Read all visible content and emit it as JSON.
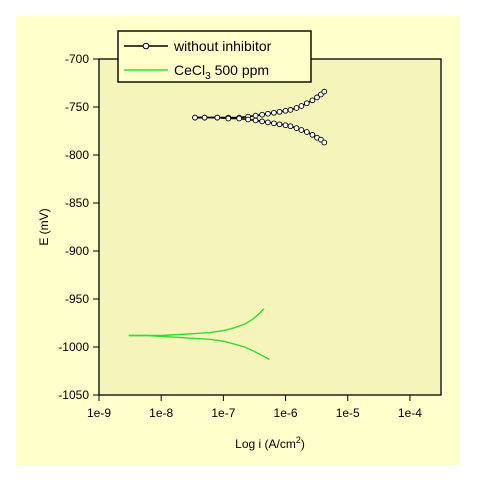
{
  "chart_data": {
    "type": "line",
    "title": "",
    "xlabel": "Log i (A/cm2)",
    "xlabel_parts": {
      "base": "Log i (A/cm",
      "sup": "2",
      "end": ")"
    },
    "ylabel": "E (mV)",
    "x_scale": "log",
    "xlim": [
      1e-09,
      0.0003162
    ],
    "ylim": [
      -1050,
      -700
    ],
    "x_ticks": [
      {
        "value": 1e-09,
        "label": "1e-9"
      },
      {
        "value": 1e-08,
        "label": "1e-8"
      },
      {
        "value": 1e-07,
        "label": "1e-7"
      },
      {
        "value": 1e-06,
        "label": "1e-6"
      },
      {
        "value": 1e-05,
        "label": "1e-5"
      },
      {
        "value": 0.0001,
        "label": "1e-4"
      }
    ],
    "y_ticks": [
      {
        "value": -700,
        "label": "-700"
      },
      {
        "value": -750,
        "label": "-750"
      },
      {
        "value": -800,
        "label": "-800"
      },
      {
        "value": -850,
        "label": "-850"
      },
      {
        "value": -900,
        "label": "-900"
      },
      {
        "value": -950,
        "label": "-950"
      },
      {
        "value": -1000,
        "label": "-1000"
      },
      {
        "value": -1050,
        "label": "-1050"
      }
    ],
    "grid": false,
    "legend_position": "top-left",
    "background_color": "#ffffcc",
    "plot_background_color": "#f5f5bb",
    "series": [
      {
        "name": "without  inhibitor",
        "color": "#000000",
        "marker": "circle-open",
        "branches": [
          {
            "x": [
              3.5e-08,
              5e-08,
              8e-08,
              1.2e-07,
              1.8e-07,
              2.5e-07,
              3.3e-07,
              4.2e-07,
              5.2e-07,
              6.5e-07,
              8e-07,
              1e-06,
              1.2e-06,
              1.5e-06,
              1.8e-06,
              2.2e-06,
              2.7e-06,
              3.2e-06,
              3.7e-06,
              4.2e-06
            ],
            "y": [
              -761,
              -761,
              -761,
              -761,
              -761,
              -760,
              -759,
              -758,
              -757,
              -756,
              -755,
              -754,
              -753,
              -751,
              -749,
              -746,
              -743,
              -740,
              -737,
              -734
            ]
          },
          {
            "x": [
              3.5e-08,
              5e-08,
              8e-08,
              1.2e-07,
              1.8e-07,
              2.5e-07,
              3.3e-07,
              4.2e-07,
              5.2e-07,
              6.5e-07,
              8e-07,
              1e-06,
              1.2e-06,
              1.5e-06,
              1.8e-06,
              2.2e-06,
              2.7e-06,
              3.2e-06,
              3.7e-06,
              4.2e-06
            ],
            "y": [
              -761,
              -761,
              -761,
              -762,
              -762,
              -763,
              -764,
              -765,
              -766,
              -767,
              -768,
              -769,
              -770,
              -772,
              -774,
              -776,
              -779,
              -782,
              -784,
              -787
            ]
          }
        ]
      },
      {
        "name": "CeCl3 500 ppm",
        "name_parts": {
          "base": "CeCl",
          "sub": "3",
          "end": " 500 ppm"
        },
        "color": "#33dd33",
        "marker": "none",
        "branches": [
          {
            "x": [
              3e-09,
              6e-09,
              1e-08,
              2e-08,
              3.5e-08,
              6e-08,
              1e-07,
              1.5e-07,
              2.2e-07,
              3e-07,
              3.8e-07,
              4.5e-07
            ],
            "y": [
              -988,
              -988,
              -988,
              -987,
              -986,
              -985,
              -983,
              -980,
              -976,
              -971,
              -965,
              -960
            ]
          },
          {
            "x": [
              3e-09,
              6e-09,
              1e-08,
              2e-08,
              3.5e-08,
              6e-08,
              1e-07,
              1.5e-07,
              2.2e-07,
              3e-07,
              4e-07,
              5.5e-07
            ],
            "y": [
              -988,
              -988,
              -989,
              -990,
              -991,
              -992,
              -994,
              -997,
              -1000,
              -1004,
              -1008,
              -1013
            ]
          }
        ]
      }
    ]
  }
}
